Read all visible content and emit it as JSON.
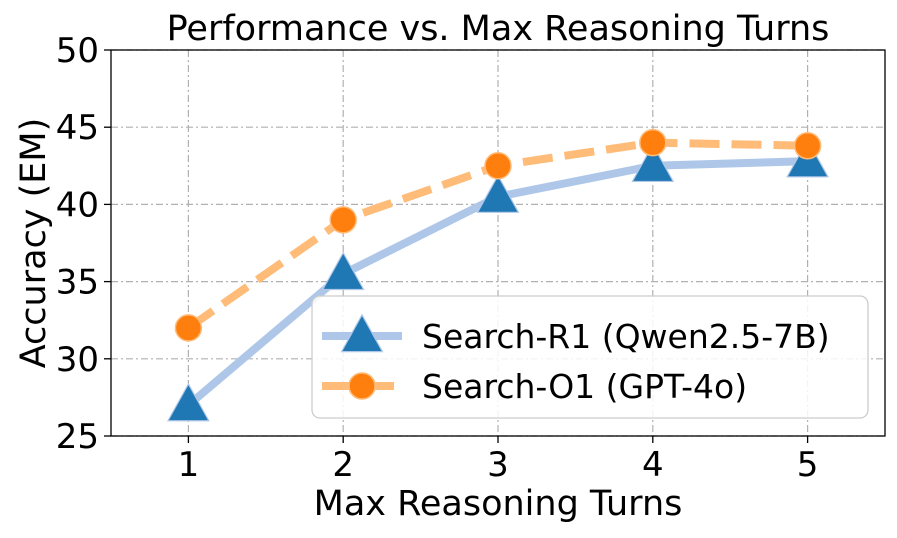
{
  "chart_data": {
    "type": "line",
    "title": "Performance vs. Max Reasoning Turns",
    "xlabel": "Max Reasoning Turns",
    "ylabel": "Accuracy (EM)",
    "x": [
      1,
      2,
      3,
      4,
      5
    ],
    "xticks": [
      "1",
      "2",
      "3",
      "4",
      "5"
    ],
    "xlim": [
      0.5,
      5.5
    ],
    "ylim": [
      25,
      50
    ],
    "yticks": [
      "25",
      "30",
      "35",
      "40",
      "45",
      "50"
    ],
    "grid": true,
    "legend_position": "lower-right",
    "series": [
      {
        "name": "Search-R1 (Qwen2.5-7B)",
        "values": [
          27.0,
          35.5,
          40.5,
          42.5,
          42.8
        ],
        "color": "#aec7e8",
        "marker_color": "#1f77b4",
        "marker": "triangle",
        "line_style": "solid"
      },
      {
        "name": "Search-O1 (GPT-4o)",
        "values": [
          32.0,
          39.0,
          42.5,
          44.0,
          43.8
        ],
        "color": "#ffbb78",
        "marker_color": "#ff7f0e",
        "marker": "circle",
        "line_style": "dashed"
      }
    ]
  }
}
